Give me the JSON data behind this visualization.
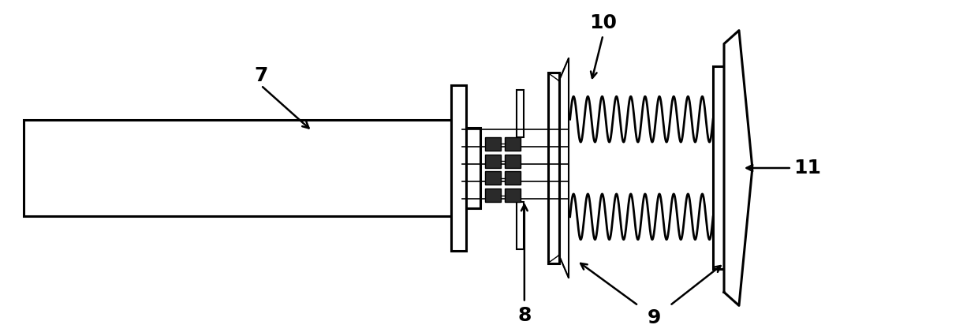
{
  "bg": "#ffffff",
  "lc": "#000000",
  "lw": 2.2,
  "lw_med": 1.5,
  "lw_thin": 1.0,
  "fw": "bold",
  "fs": 18,
  "fig_w": 12.4,
  "fig_h": 4.26,
  "dpi": 100
}
